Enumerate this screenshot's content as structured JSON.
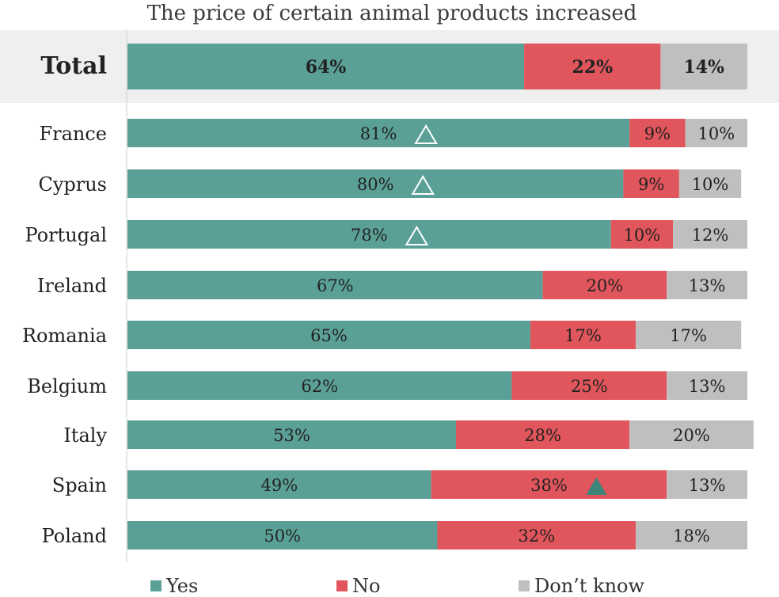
{
  "chart_data": {
    "type": "bar",
    "orientation": "horizontal",
    "stacked": true,
    "title": "The price of certain animal products increased",
    "categories": [
      "Total",
      "France",
      "Cyprus",
      "Portugal",
      "Ireland",
      "Romania",
      "Belgium",
      "Italy",
      "Spain",
      "Poland"
    ],
    "series": [
      {
        "name": "Yes",
        "color": "#5ba097",
        "values": [
          64,
          81,
          80,
          78,
          67,
          65,
          62,
          53,
          49,
          50
        ]
      },
      {
        "name": "No",
        "color": "#e1565c",
        "values": [
          22,
          9,
          9,
          10,
          20,
          17,
          25,
          28,
          38,
          32
        ]
      },
      {
        "name": "Don’t know",
        "color": "#bfbfbf",
        "values": [
          14,
          10,
          10,
          12,
          13,
          17,
          13,
          20,
          13,
          18
        ]
      }
    ],
    "value_format": "{v}%",
    "highlight_category": "Total",
    "markers": [
      {
        "category": "France",
        "series": "Yes",
        "shape": "triangle-outline"
      },
      {
        "category": "Cyprus",
        "series": "Yes",
        "shape": "triangle-outline"
      },
      {
        "category": "Portugal",
        "series": "Yes",
        "shape": "triangle-outline"
      },
      {
        "category": "Spain",
        "series": "No",
        "shape": "triangle-filled"
      }
    ],
    "legend_position": "bottom",
    "xlim": [
      0,
      100
    ],
    "grid": false
  }
}
